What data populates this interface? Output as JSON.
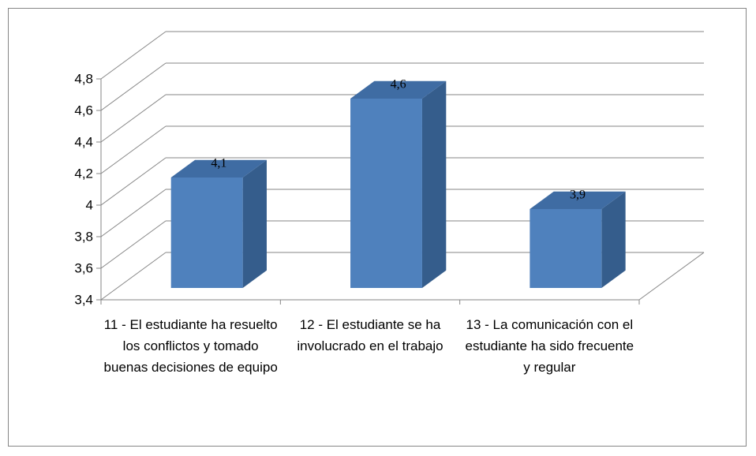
{
  "chart_data": {
    "type": "bar3d",
    "categories": [
      "11 - El estudiante ha resuelto los conflictos y tomado buenas decisiones de equipo",
      "12 - El estudiante se ha involucrado en el trabajo",
      "13 - La comunicación con el estudiante ha sido frecuente y regular"
    ],
    "values": [
      4.1,
      4.6,
      3.9
    ],
    "value_labels": [
      "4,1",
      "4,6",
      "3,9"
    ],
    "color": "#4f81bd",
    "ylim": [
      3.4,
      4.8
    ],
    "yticks": [
      {
        "value": 3.4,
        "label": "3,4"
      },
      {
        "value": 3.6,
        "label": "3,6"
      },
      {
        "value": 3.8,
        "label": "3,8"
      },
      4,
      {
        "value": 4.2,
        "label": "4,2"
      },
      {
        "value": 4.4,
        "label": "4,4"
      },
      {
        "value": 4.6,
        "label": "4,6"
      },
      {
        "value": 4.8,
        "label": "4,8"
      }
    ],
    "grid": true
  }
}
